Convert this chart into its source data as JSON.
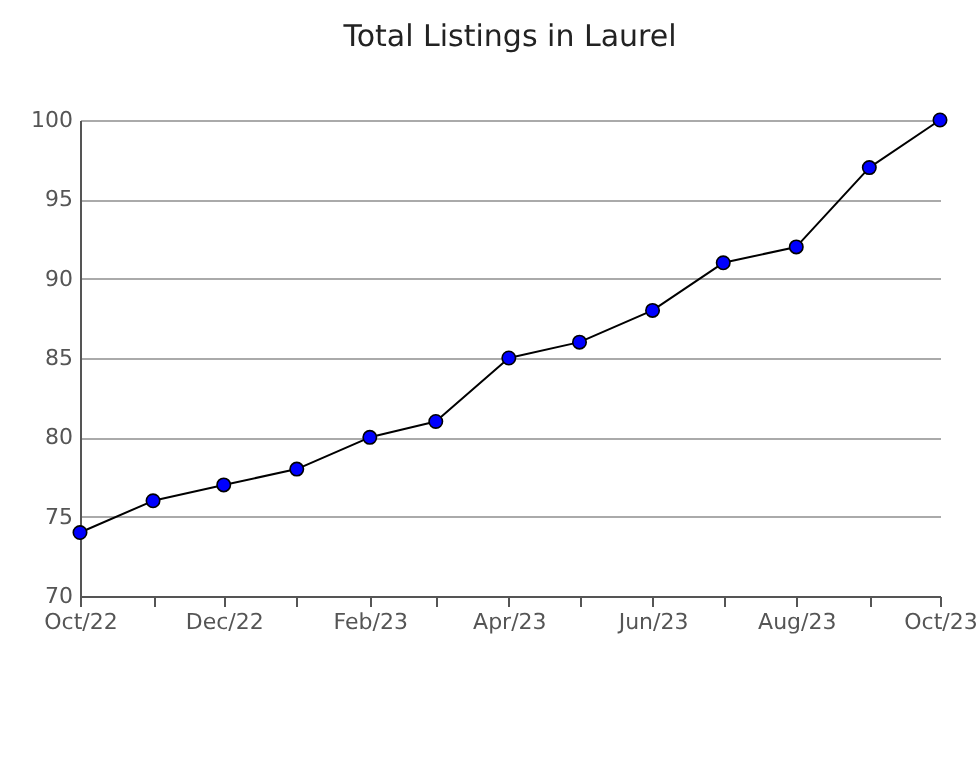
{
  "chart_data": {
    "type": "line",
    "title": "Total Listings in Laurel",
    "x": [
      "2022-10",
      "2022-11",
      "2022-12",
      "2023-01",
      "2023-02",
      "2023-03",
      "2023-04",
      "2023-05",
      "2023-06",
      "2023-07",
      "2023-08",
      "2023-09",
      "2023-10"
    ],
    "series": [
      {
        "color": "#0000ff",
        "values": [
          74,
          76,
          77,
          78,
          80,
          81,
          85,
          86,
          88,
          91,
          92,
          97,
          100
        ]
      }
    ],
    "xlim": [
      "2022-10",
      "2023-10"
    ],
    "xticks": [
      {
        "value": "2022-10",
        "label": "Oct/22"
      },
      {
        "value": "2022-11",
        "label": null
      },
      {
        "value": "2022-12",
        "label": "Dec/22"
      },
      {
        "value": "2023-01",
        "label": null
      },
      {
        "value": "2023-02",
        "label": "Feb/23"
      },
      {
        "value": "2023-03",
        "label": null
      },
      {
        "value": "2023-04",
        "label": "Apr/23"
      },
      {
        "value": "2023-05",
        "label": null
      },
      {
        "value": "2023-06",
        "label": "Jun/23"
      },
      {
        "value": "2023-07",
        "label": null
      },
      {
        "value": "2023-08",
        "label": "Aug/23"
      },
      {
        "value": "2023-09",
        "label": null
      },
      {
        "value": "2023-10",
        "label": "Oct/23"
      }
    ],
    "ylim": [
      70,
      100
    ],
    "yticks": [
      70,
      75,
      80,
      85,
      90,
      95,
      100
    ],
    "grid": "y",
    "marker": "circle",
    "line_style": "solid"
  }
}
